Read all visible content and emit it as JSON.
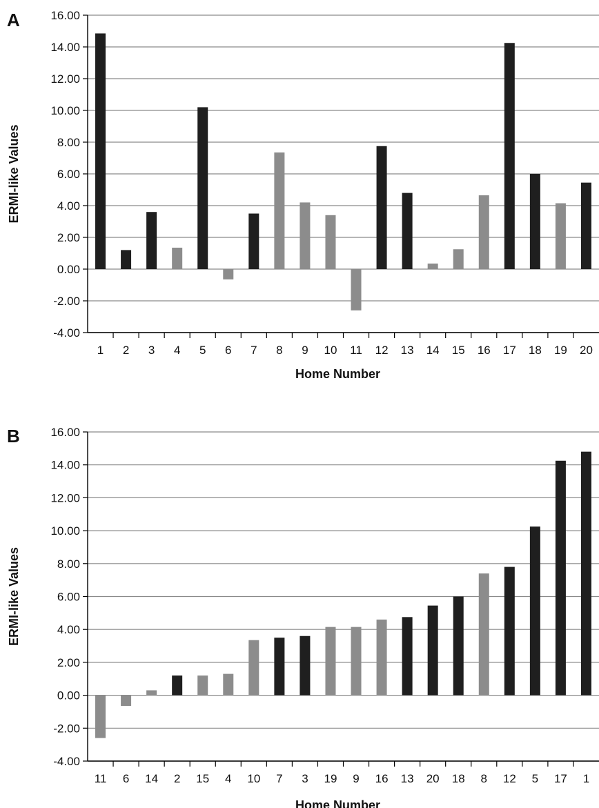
{
  "colors": {
    "black_bar": "#1f1f1f",
    "gray_bar": "#8c8c8c",
    "grid": "#8a8a8a",
    "axis": "#000000"
  },
  "chart_data": [
    {
      "panel": "A",
      "type": "bar",
      "xlabel": "Home Number",
      "ylabel": "ERMI-like Values",
      "ylim": [
        -4,
        16
      ],
      "ytick_step": 2,
      "yticks": [
        "16.00",
        "14.00",
        "12.00",
        "10.00",
        "8.00",
        "6.00",
        "4.00",
        "2.00",
        "0.00",
        "-2.00",
        "-4.00"
      ],
      "grid": true,
      "categories": [
        "1",
        "2",
        "3",
        "4",
        "5",
        "6",
        "7",
        "8",
        "9",
        "10",
        "11",
        "12",
        "13",
        "14",
        "15",
        "16",
        "17",
        "18",
        "19",
        "20"
      ],
      "values": [
        14.85,
        1.2,
        3.6,
        1.35,
        10.2,
        -0.65,
        3.5,
        7.35,
        4.2,
        3.4,
        -2.6,
        7.75,
        4.8,
        0.35,
        1.25,
        4.65,
        14.25,
        6.0,
        4.15,
        5.45
      ],
      "bar_colors": [
        "black",
        "black",
        "black",
        "gray",
        "black",
        "gray",
        "black",
        "gray",
        "gray",
        "gray",
        "gray",
        "black",
        "black",
        "gray",
        "gray",
        "gray",
        "black",
        "black",
        "gray",
        "black"
      ]
    },
    {
      "panel": "B",
      "type": "bar",
      "xlabel": "Home Number",
      "ylabel": "ERMI-like Values",
      "ylim": [
        -4,
        16
      ],
      "ytick_step": 2,
      "yticks": [
        "16.00",
        "14.00",
        "12.00",
        "10.00",
        "8.00",
        "6.00",
        "4.00",
        "2.00",
        "0.00",
        "-2.00",
        "-4.00"
      ],
      "grid": true,
      "categories": [
        "11",
        "6",
        "14",
        "2",
        "15",
        "4",
        "10",
        "7",
        "3",
        "19",
        "9",
        "16",
        "13",
        "20",
        "18",
        "8",
        "12",
        "5",
        "17",
        "1"
      ],
      "values": [
        -2.6,
        -0.65,
        0.3,
        1.2,
        1.2,
        1.3,
        3.35,
        3.5,
        3.6,
        4.15,
        4.15,
        4.6,
        4.75,
        5.45,
        6.0,
        7.4,
        7.8,
        10.25,
        14.25,
        14.8
      ],
      "bar_colors": [
        "gray",
        "gray",
        "gray",
        "black",
        "gray",
        "gray",
        "gray",
        "black",
        "black",
        "gray",
        "gray",
        "gray",
        "black",
        "black",
        "black",
        "gray",
        "black",
        "black",
        "black",
        "black"
      ]
    }
  ]
}
